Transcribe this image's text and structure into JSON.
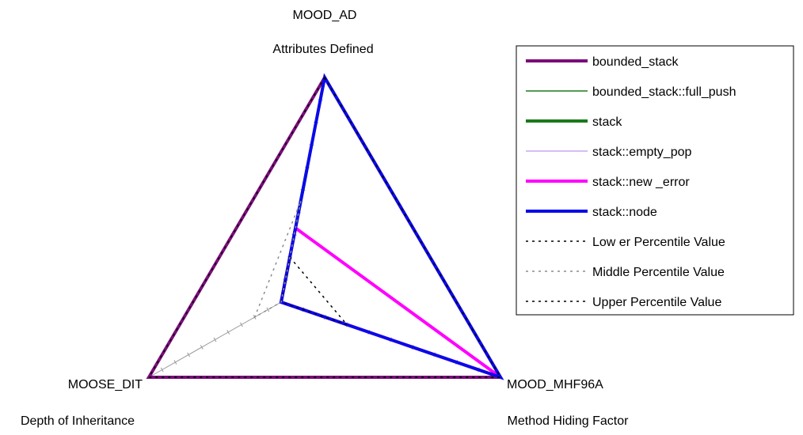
{
  "chart_data": {
    "type": "radar",
    "axes": [
      {
        "key": "MOOD_AD",
        "name": "MOOD_AD",
        "description": "Attributes Defined"
      },
      {
        "key": "MOOD_MHF96A",
        "name": "MOOD_MHF96A",
        "description": "Method Hiding Factor"
      },
      {
        "key": "MOOSE_DIT",
        "name": "MOOSE_DIT",
        "description": "Depth of Inheritance"
      }
    ],
    "range": [
      0,
      1
    ],
    "ticks_per_axis": 10,
    "series": [
      {
        "name": "bounded_stack",
        "color": "#7B0C7B",
        "width": 4,
        "dash": "",
        "values": [
          1.0,
          1.0,
          1.0
        ]
      },
      {
        "name": "bounded_stack::full_push",
        "color": "#1A7A1A",
        "width": 1.5,
        "dash": "",
        "values": [
          0.0,
          0.0,
          0.0
        ]
      },
      {
        "name": "stack",
        "color": "#1A7A1A",
        "width": 4,
        "dash": "",
        "values": [
          0.6,
          0.0,
          0.0
        ]
      },
      {
        "name": "stack::empty_pop",
        "color": "#C8A8F0",
        "width": 1.5,
        "dash": "",
        "values": [
          0.0,
          0.0,
          0.0
        ]
      },
      {
        "name": "stack::new _error",
        "color": "#FF00FF",
        "width": 4,
        "dash": "",
        "values": [
          0.33,
          1.0,
          0.0
        ]
      },
      {
        "name": "stack::node",
        "color": "#0A0AE8",
        "width": 4,
        "dash": "",
        "values": [
          1.0,
          1.0,
          0.0
        ]
      },
      {
        "name": "Low er Percentile Value",
        "color": "#000000",
        "width": 1.5,
        "dash": "3,5",
        "values": [
          0.2,
          0.3,
          0.0
        ]
      },
      {
        "name": "Middle Percentile Value",
        "color": "#8C8C8C",
        "width": 1.5,
        "dash": "3,5",
        "values": [
          0.45,
          0.0,
          0.2
        ]
      },
      {
        "name": "Upper Percentile Value",
        "color": "#000000",
        "width": 1.5,
        "dash": "3,5",
        "values": [
          1.0,
          1.0,
          1.0
        ]
      }
    ]
  }
}
